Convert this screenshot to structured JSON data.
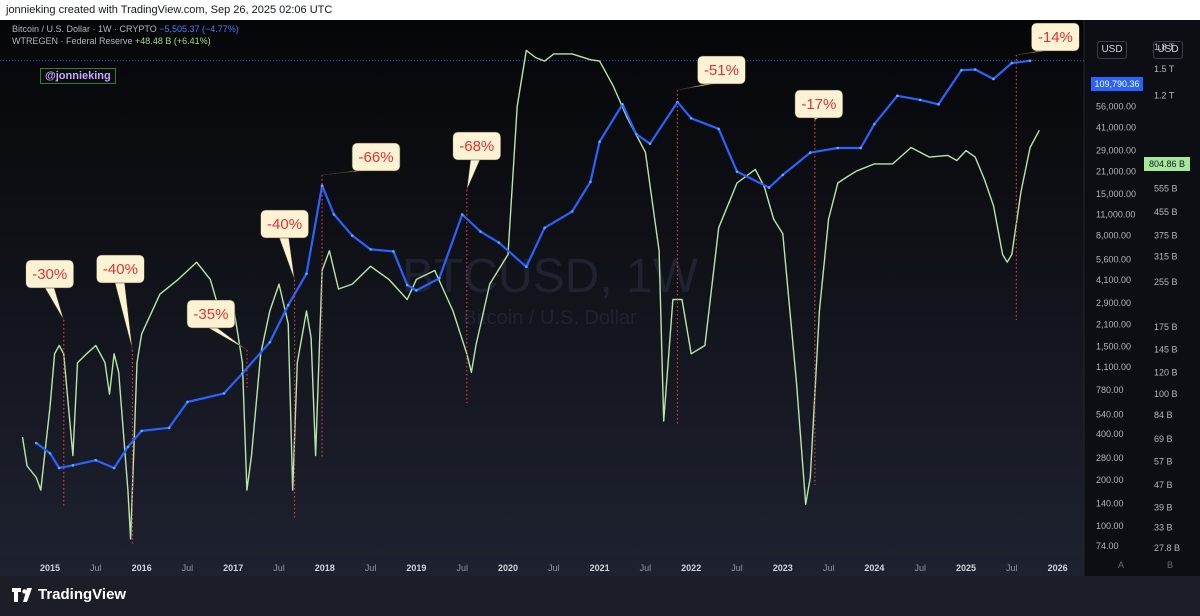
{
  "header": {
    "caption": "jonnieking created with TradingView.com, Sep 26, 2025 02:06 UTC"
  },
  "legend": {
    "series1_label": "Bitcoin / U.S. Dollar · 1W · CRYPTO",
    "series1_change": "−5,505.37 (−4.77%)",
    "series2_label": "WTREGEN · Federal Reserve",
    "series2_change": "+48.48 B (+6.41%)"
  },
  "watermark": {
    "handle": "@jonnieking",
    "symbol": "BTCUSD, 1W",
    "name": "Bitcoin / U.S. Dollar"
  },
  "scale_buttons": {
    "left": "USD",
    "right": "USD"
  },
  "price_tags": {
    "btc": "109,790.36",
    "fed": "804.86 B"
  },
  "footer": {
    "brand": "TradingView"
  },
  "colors": {
    "btc_line": "#2962ff",
    "fed_line": "#b8e6a8",
    "annotation_bg": "#fbf3d4",
    "annotation_text": "#e03434",
    "drop_marker": "#d93a3a"
  },
  "chart_data": {
    "type": "line",
    "x_ticks": [
      "2015",
      "Jul",
      "2016",
      "Jul",
      "2017",
      "Jul",
      "2018",
      "Jul",
      "2019",
      "Jul",
      "2020",
      "Jul",
      "2021",
      "Jul",
      "2022",
      "Jul",
      "2023",
      "Jul",
      "2024",
      "Jul",
      "2025",
      "Jul",
      "2026"
    ],
    "left_axis_ticks": [
      74,
      100,
      140,
      200,
      280,
      400,
      540,
      780,
      1100,
      1500,
      2100,
      2900,
      4100,
      5600,
      8000,
      11000,
      15000,
      21000,
      29000,
      41000,
      56000,
      80000
    ],
    "left_axis_labels": [
      "74.00",
      "100.00",
      "140.00",
      "200.00",
      "280.00",
      "400.00",
      "540.00",
      "780.00",
      "1,100.00",
      "1,500.00",
      "2,100.00",
      "2,900.00",
      "4,100.00",
      "5,600.00",
      "8,000.00",
      "11,000.00",
      "15,000.00",
      "21,000.00",
      "29,000.00",
      "41,000.00",
      "56,000.00",
      "80,000.00"
    ],
    "right_axis_labels": [
      "1.8 T",
      "1.5 T",
      "1.2 T",
      "680 B",
      "555 B",
      "455 B",
      "375 B",
      "315 B",
      "255 B",
      "175 B",
      "145 B",
      "120 B",
      "100 B",
      "84 B",
      "69 B",
      "57 B",
      "47 B",
      "39 B",
      "33 B",
      "27.8 B"
    ],
    "scale_footer": [
      "A",
      "B"
    ],
    "log_scale": true,
    "series": [
      {
        "name": "Bitcoin / U.S. Dollar",
        "x": [
          2014.85,
          2015.0,
          2015.1,
          2015.25,
          2015.5,
          2015.7,
          2015.85,
          2016.0,
          2016.3,
          2016.5,
          2016.9,
          2017.1,
          2017.4,
          2017.6,
          2017.8,
          2017.97,
          2018.1,
          2018.3,
          2018.5,
          2018.75,
          2018.9,
          2019.0,
          2019.25,
          2019.5,
          2019.7,
          2019.9,
          2020.2,
          2020.4,
          2020.7,
          2020.9,
          2021.0,
          2021.25,
          2021.4,
          2021.55,
          2021.85,
          2022.0,
          2022.3,
          2022.5,
          2022.85,
          2023.0,
          2023.3,
          2023.6,
          2023.85,
          2024.0,
          2024.25,
          2024.5,
          2024.7,
          2024.95,
          2025.1,
          2025.3,
          2025.5,
          2025.7
        ],
        "y": [
          350,
          300,
          240,
          250,
          270,
          240,
          330,
          420,
          440,
          650,
          740,
          1000,
          1600,
          2800,
          4500,
          17000,
          11000,
          8000,
          6500,
          6300,
          3800,
          3500,
          4200,
          11000,
          8500,
          7200,
          5000,
          9000,
          11500,
          18000,
          33000,
          58000,
          37000,
          32000,
          60000,
          47000,
          40000,
          21000,
          16500,
          20000,
          28000,
          30000,
          30000,
          43000,
          66000,
          62000,
          58000,
          97000,
          98000,
          85000,
          108000,
          112000
        ]
      },
      {
        "name": "WTREGEN · Federal Reserve",
        "x": [
          2014.7,
          2014.75,
          2014.85,
          2014.9,
          2015.0,
          2015.05,
          2015.1,
          2015.15,
          2015.25,
          2015.3,
          2015.4,
          2015.5,
          2015.6,
          2015.65,
          2015.7,
          2015.75,
          2015.85,
          2015.88,
          2015.95,
          2016.0,
          2016.2,
          2016.4,
          2016.6,
          2016.75,
          2016.85,
          2017.0,
          2017.1,
          2017.15,
          2017.2,
          2017.3,
          2017.4,
          2017.5,
          2017.6,
          2017.65,
          2017.7,
          2017.8,
          2017.85,
          2017.9,
          2017.97,
          2018.05,
          2018.15,
          2018.3,
          2018.5,
          2018.7,
          2018.9,
          2019.0,
          2019.2,
          2019.4,
          2019.55,
          2019.6,
          2019.65,
          2019.8,
          2020.0,
          2020.1,
          2020.2,
          2020.3,
          2020.4,
          2020.5,
          2020.7,
          2020.9,
          2021.0,
          2021.15,
          2021.3,
          2021.5,
          2021.65,
          2021.7,
          2021.8,
          2021.9,
          2022.0,
          2022.15,
          2022.3,
          2022.5,
          2022.7,
          2022.8,
          2022.9,
          2023.0,
          2023.15,
          2023.25,
          2023.3,
          2023.4,
          2023.5,
          2023.6,
          2023.7,
          2023.8,
          2024.0,
          2024.2,
          2024.4,
          2024.6,
          2024.8,
          2024.9,
          2025.0,
          2025.1,
          2025.2,
          2025.3,
          2025.4,
          2025.45,
          2025.5,
          2025.6,
          2025.7,
          2025.8
        ],
        "y": [
          70,
          55,
          50,
          45,
          90,
          140,
          150,
          140,
          60,
          130,
          140,
          150,
          130,
          100,
          140,
          120,
          45,
          30,
          130,
          165,
          230,
          260,
          300,
          260,
          200,
          210,
          130,
          45,
          60,
          140,
          200,
          250,
          180,
          45,
          130,
          200,
          160,
          60,
          280,
          330,
          240,
          250,
          290,
          260,
          220,
          260,
          280,
          200,
          140,
          120,
          150,
          250,
          320,
          1100,
          1750,
          1650,
          1600,
          1700,
          1700,
          1620,
          1600,
          1300,
          1000,
          750,
          330,
          80,
          220,
          220,
          140,
          150,
          400,
          580,
          650,
          560,
          430,
          380,
          110,
          40,
          50,
          200,
          430,
          580,
          610,
          640,
          680,
          680,
          780,
          720,
          730,
          700,
          760,
          720,
          600,
          480,
          320,
          300,
          320,
          540,
          780,
          900
        ]
      }
    ],
    "annotations": [
      {
        "text": "-30%",
        "x": 2015.15
      },
      {
        "text": "-40%",
        "x": 2015.9
      },
      {
        "text": "-35%",
        "x": 2017.15
      },
      {
        "text": "-40%",
        "x": 2017.67
      },
      {
        "text": "-66%",
        "x": 2017.97
      },
      {
        "text": "-68%",
        "x": 2019.55
      },
      {
        "text": "-51%",
        "x": 2021.85
      },
      {
        "text": "-17%",
        "x": 2023.35
      },
      {
        "text": "-14%",
        "x": 2025.55
      }
    ]
  }
}
